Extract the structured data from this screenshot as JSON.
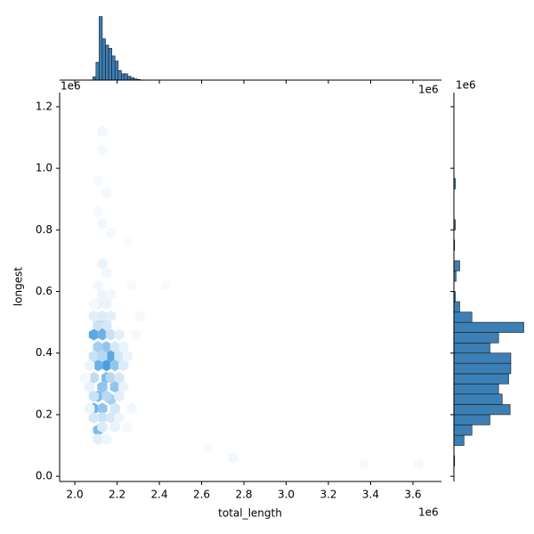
{
  "chart_data": {
    "type": "hexjoint",
    "x_label": "total_length",
    "y_label": "longest",
    "x_offset_text": "1e6",
    "y_offset_text": "1e6",
    "top_offset_text": "1e6",
    "right_offset_text": "1e6",
    "xlim": [
      1.928,
      3.735
    ],
    "ylim": [
      -0.017,
      1.246
    ],
    "xticks": [
      {
        "value": 2.0,
        "label": "2.0"
      },
      {
        "value": 2.2,
        "label": "2.2"
      },
      {
        "value": 2.4,
        "label": "2.4"
      },
      {
        "value": 2.6,
        "label": "2.6"
      },
      {
        "value": 2.8,
        "label": "2.8"
      },
      {
        "value": 3.0,
        "label": "3.0"
      },
      {
        "value": 3.2,
        "label": "3.2"
      },
      {
        "value": 3.4,
        "label": "3.4"
      },
      {
        "value": 3.6,
        "label": "3.6"
      }
    ],
    "yticks": [
      {
        "value": 0.0,
        "label": "0.0"
      },
      {
        "value": 0.2,
        "label": "0.2"
      },
      {
        "value": 0.4,
        "label": "0.4"
      },
      {
        "value": 0.6,
        "label": "0.6"
      },
      {
        "value": 0.8,
        "label": "0.8"
      },
      {
        "value": 1.0,
        "label": "1.0"
      },
      {
        "value": 1.2,
        "label": "1.2"
      }
    ],
    "hex_colors": [
      "#ffffff",
      "#4a9ee0",
      "#101018"
    ],
    "hexbin": {
      "x": [
        2.13,
        2.09,
        2.13,
        2.17,
        2.15,
        2.11,
        2.15,
        2.13,
        2.11,
        2.09,
        2.13,
        2.11,
        2.19,
        2.17,
        2.19,
        2.15,
        2.11,
        2.09,
        2.13,
        2.09,
        2.17,
        2.21,
        2.09,
        2.15,
        2.13,
        2.17,
        2.09,
        2.19,
        2.17,
        2.19,
        2.21,
        2.23,
        2.11,
        2.15,
        2.17,
        2.09,
        2.13,
        2.11,
        2.15,
        2.13,
        2.11,
        2.13,
        2.15,
        2.21,
        2.23,
        2.25,
        2.21,
        2.23,
        2.11,
        2.15,
        2.13,
        2.19,
        2.21,
        2.07,
        2.07,
        2.05,
        2.13,
        2.13,
        2.11,
        2.15,
        2.11,
        2.13,
        2.17,
        2.25,
        2.27,
        2.43,
        2.31,
        2.63,
        2.75,
        3.37,
        3.63,
        2.29,
        2.27,
        2.25,
        2.07,
        2.17,
        2.09
      ],
      "y": [
        0.49,
        0.46,
        0.46,
        0.39,
        0.36,
        0.36,
        0.32,
        0.29,
        0.26,
        0.22,
        0.22,
        0.15,
        0.29,
        0.25,
        0.36,
        0.42,
        0.42,
        0.39,
        0.39,
        0.32,
        0.32,
        0.32,
        0.26,
        0.26,
        0.19,
        0.19,
        0.19,
        0.22,
        0.46,
        0.42,
        0.39,
        0.36,
        0.49,
        0.49,
        0.52,
        0.52,
        0.52,
        0.56,
        0.56,
        0.59,
        0.62,
        0.69,
        0.66,
        0.46,
        0.42,
        0.39,
        0.26,
        0.29,
        0.12,
        0.12,
        0.16,
        0.16,
        0.19,
        0.29,
        0.36,
        0.32,
        1.12,
        1.06,
        0.96,
        0.92,
        0.86,
        0.82,
        0.79,
        0.76,
        0.62,
        0.62,
        0.52,
        0.09,
        0.06,
        0.04,
        0.04,
        0.46,
        0.22,
        0.16,
        0.22,
        0.59,
        0.56
      ],
      "counts": [
        100,
        45,
        40,
        45,
        50,
        40,
        35,
        30,
        35,
        40,
        30,
        35,
        30,
        25,
        30,
        30,
        25,
        15,
        20,
        18,
        20,
        12,
        15,
        20,
        15,
        12,
        12,
        12,
        15,
        12,
        12,
        10,
        15,
        12,
        8,
        8,
        10,
        6,
        6,
        5,
        4,
        6,
        4,
        8,
        6,
        5,
        8,
        6,
        8,
        5,
        10,
        6,
        5,
        6,
        5,
        3,
        4,
        3,
        3,
        3,
        3,
        4,
        3,
        2,
        2,
        2,
        3,
        2,
        4,
        2,
        3,
        3,
        4,
        3,
        5,
        4,
        3
      ],
      "count_max": 100
    },
    "x_hist": {
      "color": "#3b7fb5",
      "bins": [
        2.085,
        2.1,
        2.115,
        2.13,
        2.145,
        2.16,
        2.175,
        2.19,
        2.205,
        2.22,
        2.235,
        2.25,
        2.265,
        2.28,
        2.295,
        2.31
      ],
      "counts": [
        5,
        28,
        100,
        65,
        55,
        50,
        38,
        30,
        15,
        10,
        10,
        6,
        4,
        2,
        1
      ],
      "count_lim": [
        0,
        105
      ]
    },
    "y_hist": {
      "color": "#3b7fb5",
      "bins": [
        0.033,
        0.067,
        0.1,
        0.133,
        0.167,
        0.2,
        0.233,
        0.267,
        0.3,
        0.333,
        0.367,
        0.4,
        0.433,
        0.467,
        0.5,
        0.533,
        0.567,
        0.6,
        0.633,
        0.667,
        0.7,
        0.733,
        0.767,
        0.8,
        0.833,
        0.867,
        0.9,
        0.933,
        0.967,
        1.0
      ],
      "counts": [
        1,
        0,
        14,
        25,
        50,
        78,
        67,
        62,
        76,
        79,
        79,
        50,
        62,
        97,
        25,
        8,
        2,
        0,
        3,
        8,
        0,
        1,
        0,
        2,
        0,
        0,
        0,
        2,
        0
      ],
      "count_lim": [
        0,
        105
      ]
    }
  }
}
